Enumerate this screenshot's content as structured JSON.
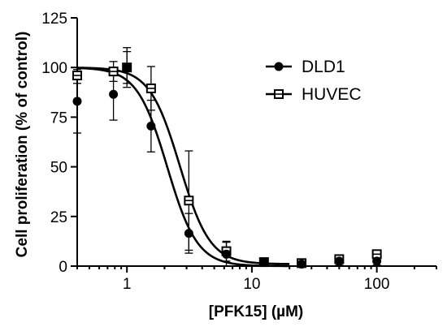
{
  "chart_data": {
    "type": "scatter",
    "xlabel": "[PFK15] (µM)",
    "ylabel": "Cell proliferation (% of control)",
    "x_scale": "log",
    "xlim": [
      0.4,
      300
    ],
    "ylim": [
      0,
      125
    ],
    "x_ticks": [
      1,
      10,
      100
    ],
    "x_tick_labels": [
      "1",
      "10",
      "100"
    ],
    "y_ticks": [
      0,
      25,
      50,
      75,
      100,
      125
    ],
    "y_tick_labels": [
      "0",
      "25",
      "50",
      "75",
      "100",
      "125"
    ],
    "grid": false,
    "legend_position": "top-right",
    "series": [
      {
        "name": "DLD1",
        "marker": "filled-circle",
        "color": "#000000",
        "points": [
          {
            "x": 0.4,
            "y": 83,
            "err": 16
          },
          {
            "x": 0.78,
            "y": 86.5,
            "err": 13
          },
          {
            "x": 1.0,
            "y": 100,
            "err": 8
          },
          {
            "x": 1.56,
            "y": 70.5,
            "err": 13
          },
          {
            "x": 3.13,
            "y": 16.5,
            "err": 10
          },
          {
            "x": 6.25,
            "y": 6,
            "err": 6
          },
          {
            "x": 12.5,
            "y": 2,
            "err": 1.5
          },
          {
            "x": 25,
            "y": 1,
            "err": 1
          },
          {
            "x": 50,
            "y": 2.5,
            "err": 2
          },
          {
            "x": 100,
            "y": 2.5,
            "err": 2
          }
        ],
        "fit": {
          "top": 100,
          "bottom": 0,
          "ic50": 2.1,
          "hill": 3.6
        }
      },
      {
        "name": "HUVEC",
        "marker": "open-square",
        "color": "#000000",
        "points": [
          {
            "x": 0.4,
            "y": 96,
            "err": 4
          },
          {
            "x": 0.78,
            "y": 98,
            "err": 5
          },
          {
            "x": 1.0,
            "y": 100,
            "err": 10
          },
          {
            "x": 1.56,
            "y": 89.5,
            "err": 11
          },
          {
            "x": 3.13,
            "y": 33,
            "err": 25
          },
          {
            "x": 6.25,
            "y": 7.5,
            "err": 5
          },
          {
            "x": 12.5,
            "y": 2,
            "err": 1.5
          },
          {
            "x": 25,
            "y": 1.5,
            "err": 1
          },
          {
            "x": 50,
            "y": 3.5,
            "err": 2
          },
          {
            "x": 100,
            "y": 6,
            "err": 2
          }
        ],
        "fit": {
          "top": 100,
          "bottom": 1,
          "ic50": 2.65,
          "hill": 3.6
        }
      }
    ]
  }
}
